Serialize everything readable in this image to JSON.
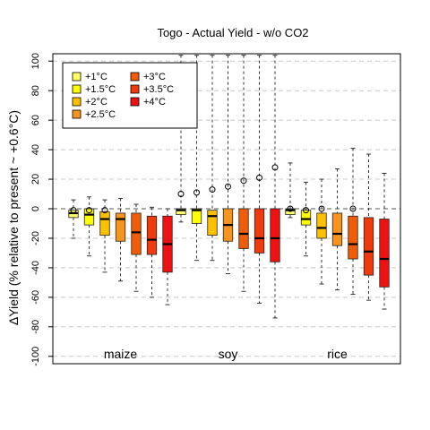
{
  "chart_data": {
    "type": "boxplot",
    "title": "Togo - Actual Yield - w/o CO2",
    "ylabel": "ΔYield (% relative to present ~ +0.6°C)",
    "xlabel": "",
    "ylim": [
      -105,
      105
    ],
    "yticks": [
      -100,
      -80,
      -60,
      -40,
      -20,
      0,
      20,
      40,
      60,
      80,
      100
    ],
    "grid": "horizontal dashed",
    "legend_position": "top-left",
    "legend": [
      {
        "label": "+1°C",
        "color": "#FFFF66"
      },
      {
        "label": "+1.5°C",
        "color": "#FFFF00"
      },
      {
        "label": "+2°C",
        "color": "#FFC000"
      },
      {
        "label": "+2.5°C",
        "color": "#F7941D"
      },
      {
        "label": "+3°C",
        "color": "#F25C05"
      },
      {
        "label": "+3.5°C",
        "color": "#F03A0C"
      },
      {
        "label": "+4°C",
        "color": "#EE1111"
      }
    ],
    "groups": [
      {
        "name": "maize",
        "boxes": [
          {
            "level": "+1°C",
            "min": -20,
            "q1": -6,
            "median": -3,
            "q3": -1,
            "max": 6,
            "mean": -1
          },
          {
            "level": "+1.5°C",
            "min": -32,
            "q1": -11,
            "median": -4,
            "q3": 0,
            "max": 8,
            "mean": -1
          },
          {
            "level": "+2°C",
            "min": -43,
            "q1": -18,
            "median": -7,
            "q3": -2,
            "max": 6,
            "mean": -1
          },
          {
            "level": "+2.5°C",
            "min": -49,
            "q1": -22,
            "median": -7,
            "q3": -3,
            "max": 7,
            "mean": null
          },
          {
            "level": "+3°C",
            "min": -56,
            "q1": -31,
            "median": -16,
            "q3": -3,
            "max": 3,
            "mean": null
          },
          {
            "level": "+3.5°C",
            "min": -60,
            "q1": -31,
            "median": -21,
            "q3": -5,
            "max": 1,
            "mean": null
          },
          {
            "level": "+4°C",
            "min": -65,
            "q1": -43,
            "median": -24,
            "q3": -5,
            "max": 0,
            "mean": null
          }
        ]
      },
      {
        "name": "soy",
        "boxes": [
          {
            "level": "+1°C",
            "min": -9,
            "q1": -4,
            "median": -1,
            "q3": 0,
            "max": 104,
            "mean": 10
          },
          {
            "level": "+1.5°C",
            "min": -35,
            "q1": -10,
            "median": -1,
            "q3": 0,
            "max": 104,
            "mean": 11
          },
          {
            "level": "+2°C",
            "min": -35,
            "q1": -18,
            "median": -5,
            "q3": -1,
            "max": 104,
            "mean": 13
          },
          {
            "level": "+2.5°C",
            "min": -44,
            "q1": -22,
            "median": -11,
            "q3": 0,
            "max": 104,
            "mean": 15
          },
          {
            "level": "+3°C",
            "min": -56,
            "q1": -27,
            "median": -17,
            "q3": 0,
            "max": 104,
            "mean": 19
          },
          {
            "level": "+3.5°C",
            "min": -64,
            "q1": -30,
            "median": -20,
            "q3": 0,
            "max": 104,
            "mean": 21
          },
          {
            "level": "+4°C",
            "min": -74,
            "q1": -36,
            "median": -20,
            "q3": 0,
            "max": 104,
            "mean": 28
          }
        ]
      },
      {
        "name": "rice",
        "boxes": [
          {
            "level": "+1°C",
            "min": -6,
            "q1": -4,
            "median": -1,
            "q3": 0,
            "max": 31,
            "mean": 0
          },
          {
            "level": "+1.5°C",
            "min": -32,
            "q1": -11,
            "median": -7,
            "q3": -1,
            "max": 18,
            "mean": -1
          },
          {
            "level": "+2°C",
            "min": -51,
            "q1": -20,
            "median": -13,
            "q3": -3,
            "max": 20,
            "mean": 0
          },
          {
            "level": "+2.5°C",
            "min": -55,
            "q1": -25,
            "median": -17,
            "q3": -3,
            "max": 27,
            "mean": null
          },
          {
            "level": "+3°C",
            "min": -58,
            "q1": -34,
            "median": -24,
            "q3": -5,
            "max": 41,
            "mean": 0
          },
          {
            "level": "+3.5°C",
            "min": -62,
            "q1": -45,
            "median": -29,
            "q3": -6,
            "max": 37,
            "mean": null
          },
          {
            "level": "+4°C",
            "min": -68,
            "q1": -53,
            "median": -34,
            "q3": -7,
            "max": 24,
            "mean": null
          }
        ]
      }
    ]
  }
}
